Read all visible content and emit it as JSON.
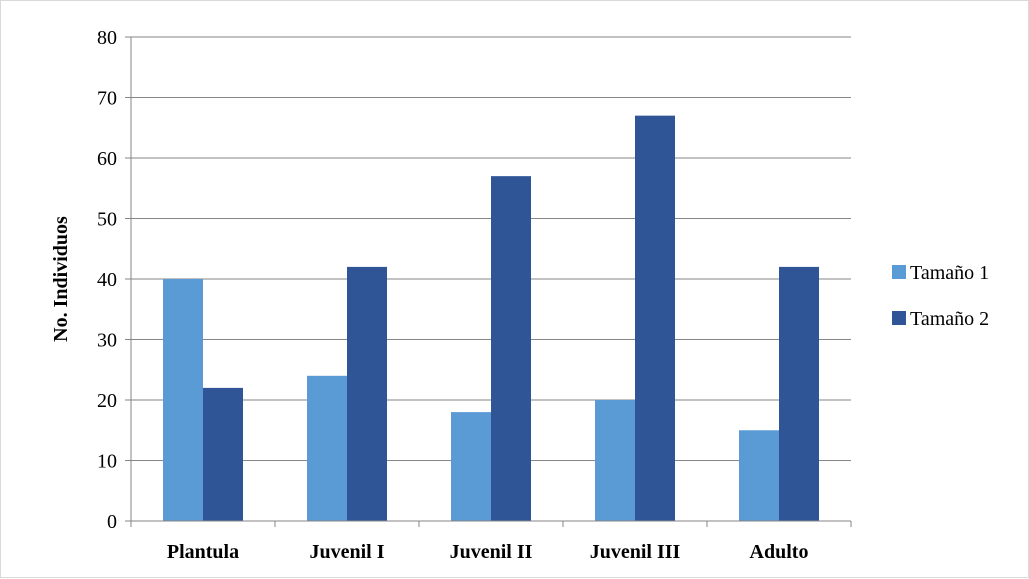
{
  "chart_data": {
    "type": "bar",
    "title": "",
    "xlabel": "",
    "ylabel": "No. Individuos",
    "ylim": [
      0,
      80
    ],
    "yticks": [
      0,
      10,
      20,
      30,
      40,
      50,
      60,
      70,
      80
    ],
    "grid": true,
    "legend_position": "right",
    "categories": [
      "Plantula",
      "Juvenil I",
      "Juvenil II",
      "Juvenil III",
      "Adulto"
    ],
    "series": [
      {
        "name": "Tamaño 1",
        "color": "#5b9bd5",
        "values": [
          40,
          24,
          18,
          20,
          15
        ]
      },
      {
        "name": "Tamaño 2",
        "color": "#2f5597",
        "values": [
          22,
          42,
          57,
          67,
          42
        ]
      }
    ]
  }
}
